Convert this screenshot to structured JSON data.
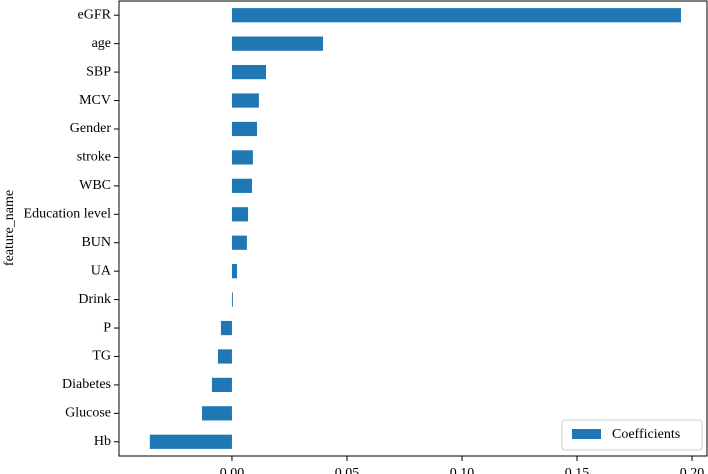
{
  "chart_data": {
    "type": "barh",
    "ylabel": "feature_name",
    "categories": [
      "eGFR",
      "age",
      "SBP",
      "MCV",
      "Gender",
      "stroke",
      "WBC",
      "Education level",
      "BUN",
      "UA",
      "Drink",
      "P",
      "TG",
      "Diabetes",
      "Glucose",
      "Hb"
    ],
    "series": [
      {
        "name": "Coefficients",
        "color": "#1f77b4",
        "values": [
          0.1952,
          0.0396,
          0.0148,
          0.0117,
          0.0109,
          0.0091,
          0.0087,
          0.007,
          0.0065,
          0.0022,
          0.0004,
          -0.0048,
          -0.0061,
          -0.0087,
          -0.013,
          -0.0357
        ]
      }
    ],
    "xlim": [
      -0.0491,
      0.2065
    ],
    "xticks": [
      {
        "value": 0,
        "label": "0.00"
      },
      {
        "value": 0.05,
        "label": "0.05"
      },
      {
        "value": 0.1,
        "label": "0.10"
      },
      {
        "value": 0.15,
        "label": "0.15"
      },
      {
        "value": 0.2,
        "label": "0.20"
      }
    ],
    "legend": "lower right"
  }
}
